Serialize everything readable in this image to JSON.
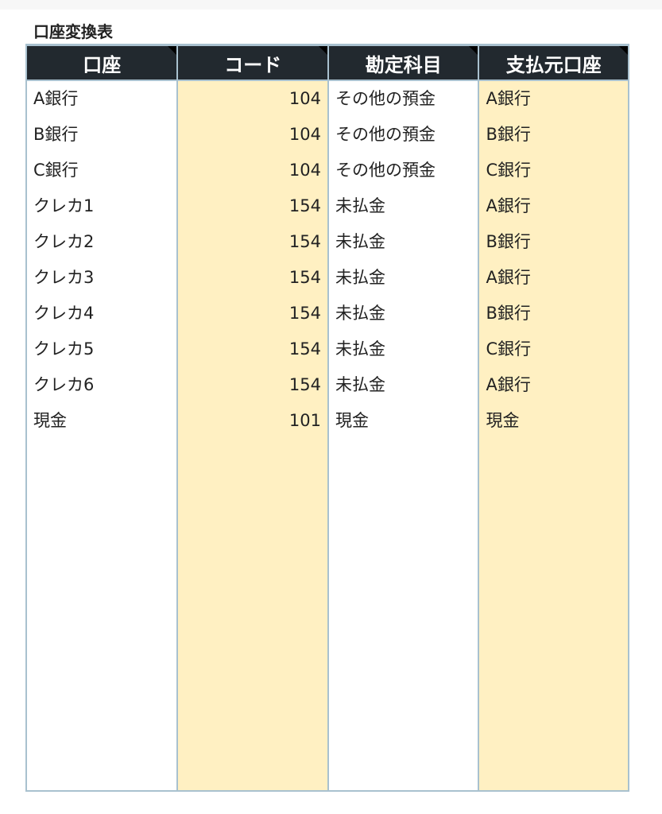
{
  "title": "口座変換表",
  "columns": [
    "口座",
    "コード",
    "勘定科目",
    "支払元口座"
  ],
  "rows": [
    [
      "A銀行",
      "104",
      "その他の預金",
      "A銀行"
    ],
    [
      "B銀行",
      "104",
      "その他の預金",
      "B銀行"
    ],
    [
      "C銀行",
      "104",
      "その他の預金",
      "C銀行"
    ],
    [
      "クレカ1",
      "154",
      "未払金",
      "A銀行"
    ],
    [
      "クレカ2",
      "154",
      "未払金",
      "B銀行"
    ],
    [
      "クレカ3",
      "154",
      "未払金",
      "A銀行"
    ],
    [
      "クレカ4",
      "154",
      "未払金",
      "B銀行"
    ],
    [
      "クレカ5",
      "154",
      "未払金",
      "C銀行"
    ],
    [
      "クレカ6",
      "154",
      "未払金",
      "A銀行"
    ],
    [
      "現金",
      "101",
      "現金",
      "現金"
    ]
  ],
  "colors": {
    "header_bg": "#22292f",
    "alt_column_bg": "#fff0c2",
    "border": "#a9c1cf"
  }
}
